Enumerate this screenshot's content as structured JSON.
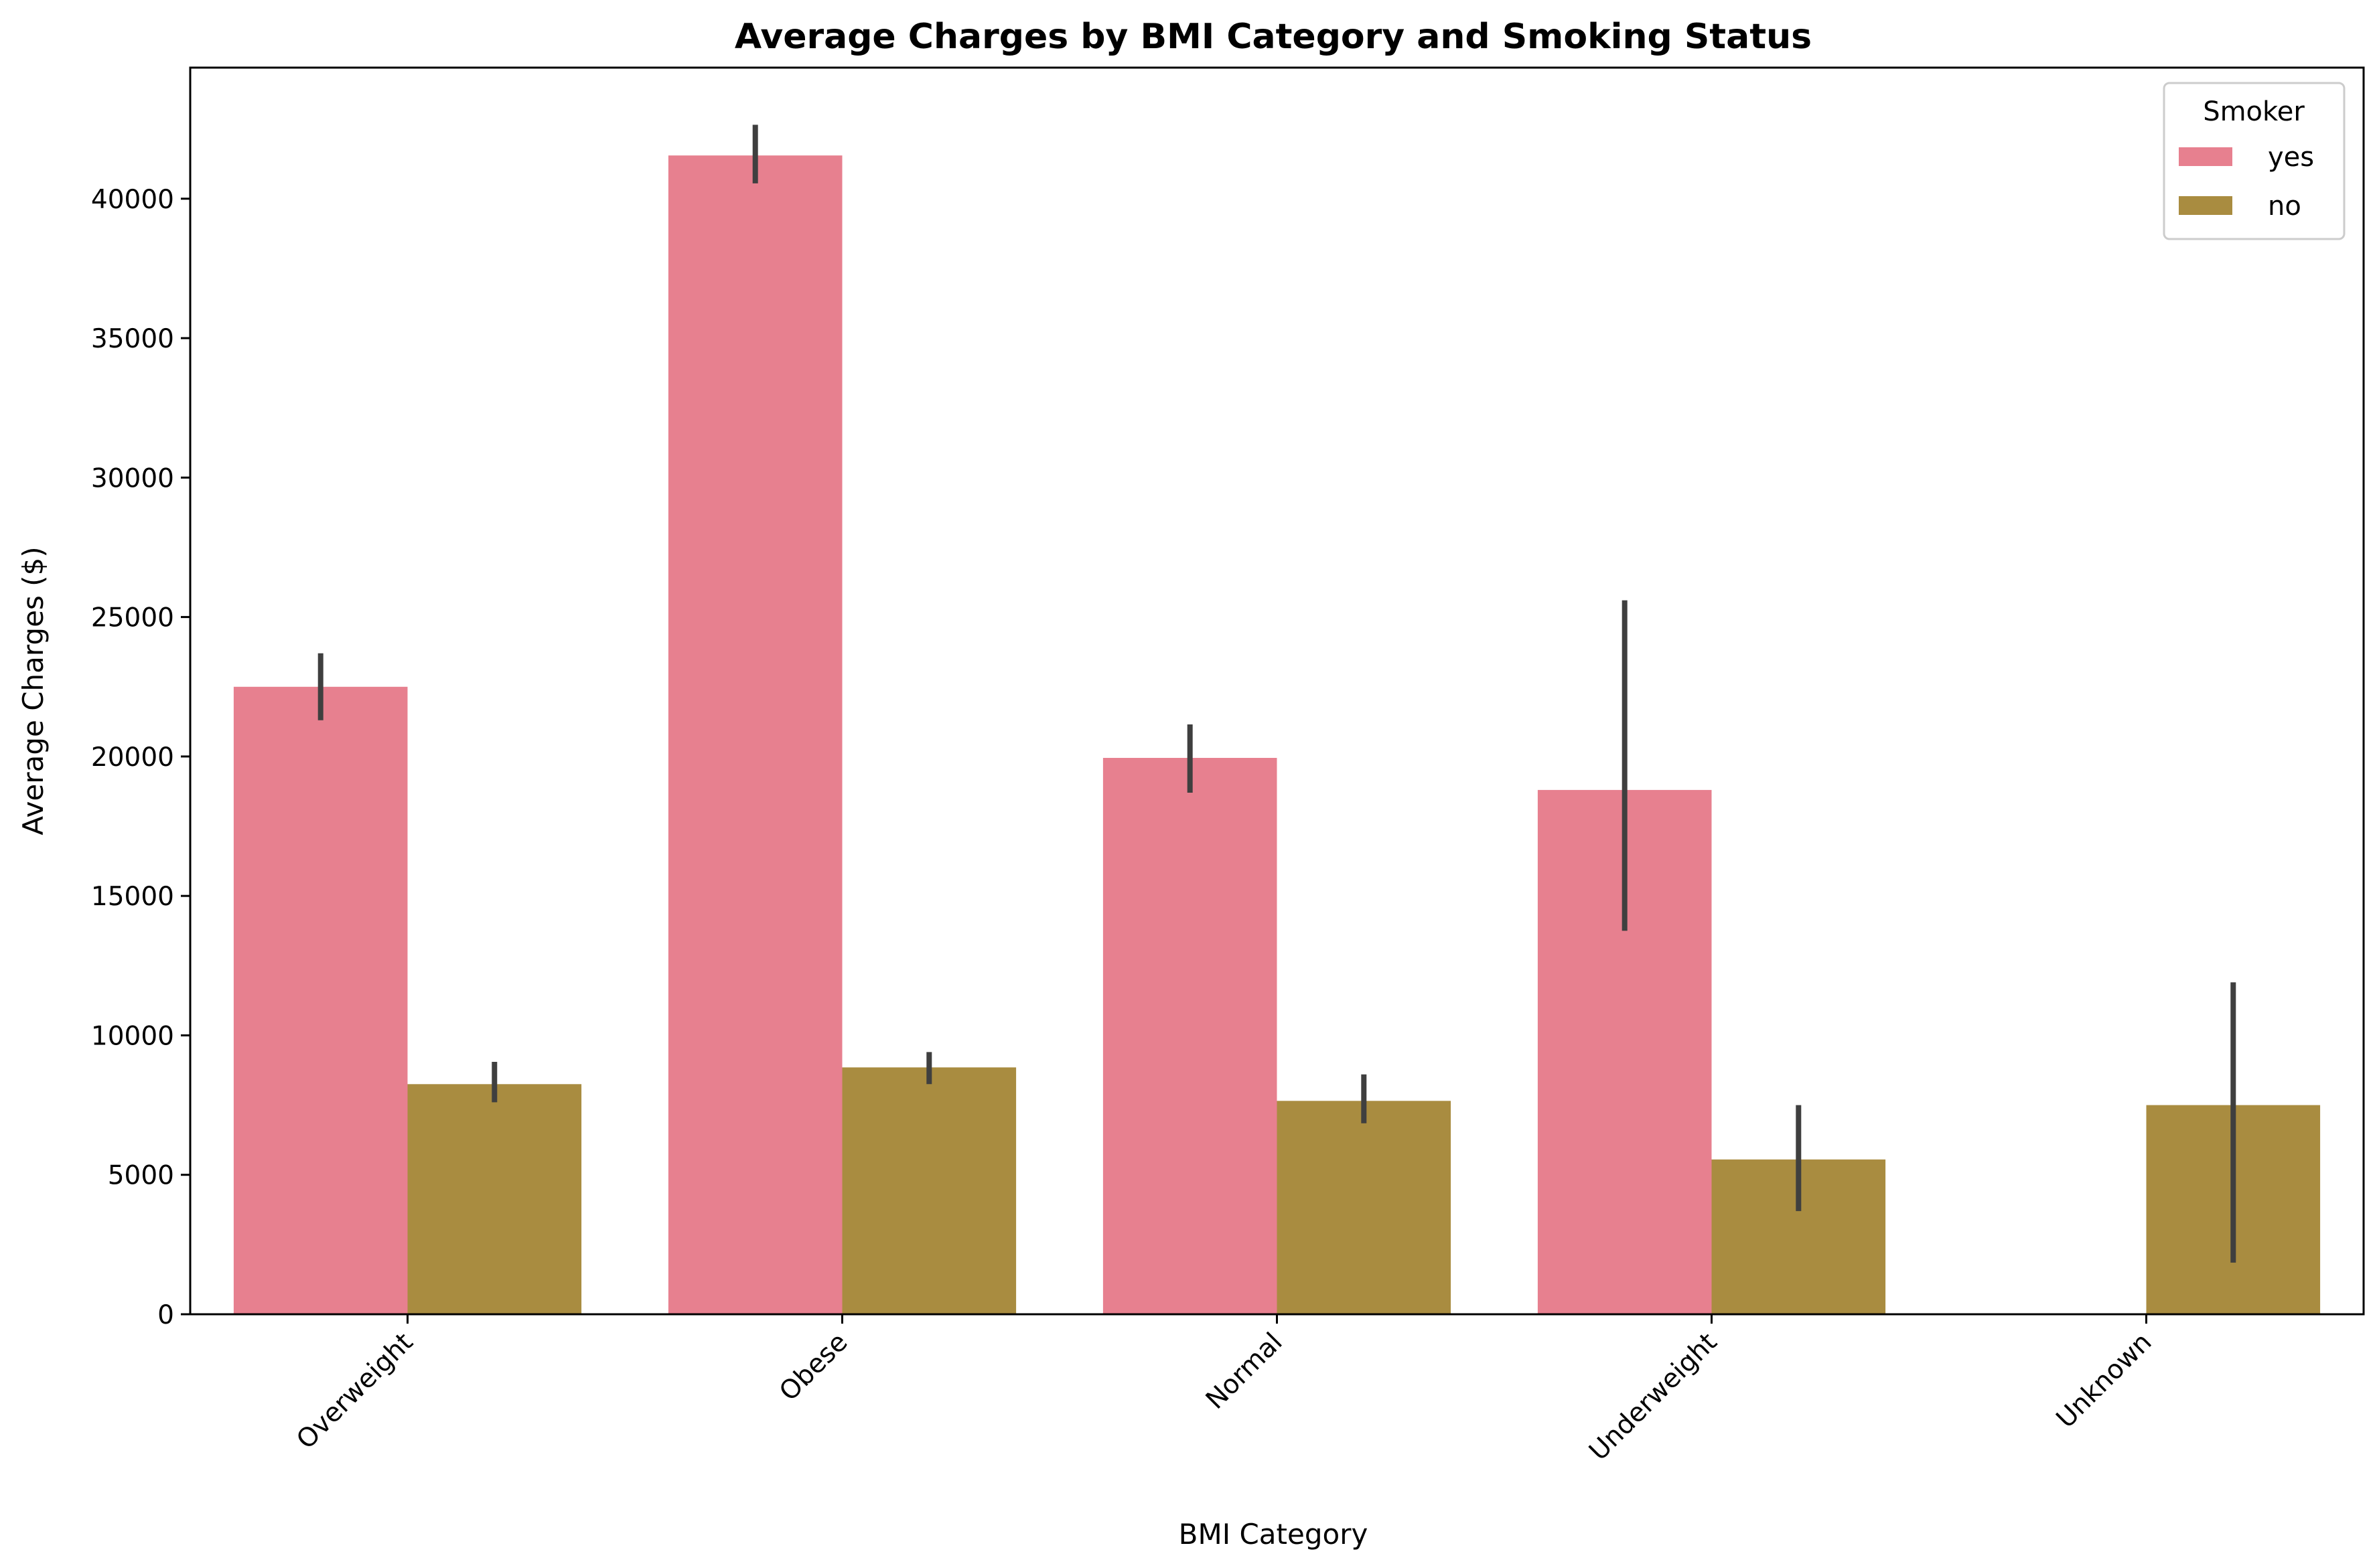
{
  "chart_data": {
    "type": "bar",
    "title": "Average Charges by BMI Category and Smoking Status",
    "xlabel": "BMI Category",
    "ylabel": "Average Charges ($)",
    "categories": [
      "Overweight",
      "Obese",
      "Normal",
      "Underweight",
      "Unknown"
    ],
    "series": [
      {
        "name": "yes",
        "color": "#e7808f",
        "values": [
          22500,
          41550,
          19950,
          18800,
          null
        ],
        "ci_low": [
          21300,
          40550,
          18700,
          13750,
          null
        ],
        "ci_high": [
          23700,
          42650,
          21150,
          25600,
          null
        ]
      },
      {
        "name": "no",
        "color": "#a98c40",
        "values": [
          8250,
          8850,
          7650,
          5550,
          7500
        ],
        "ci_low": [
          7600,
          8250,
          6850,
          3700,
          1850
        ],
        "ci_high": [
          9050,
          9400,
          8600,
          7500,
          11900
        ]
      }
    ],
    "ylim": [
      0,
      44700
    ],
    "yticks": [
      0,
      5000,
      10000,
      15000,
      20000,
      25000,
      30000,
      35000,
      40000
    ],
    "xtick_rotation": 45,
    "legend": {
      "title": "Smoker",
      "position": "top-right"
    },
    "grid": false,
    "errorbar_color": "#3f3f3f"
  }
}
